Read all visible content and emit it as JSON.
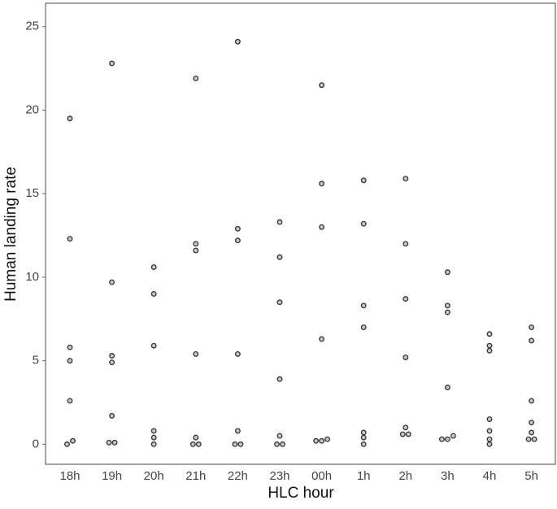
{
  "chart_data": {
    "type": "strip",
    "x_label": "HLC hour",
    "y_label": "Human landing rate",
    "categories": [
      "18h",
      "19h",
      "20h",
      "21h",
      "22h",
      "23h",
      "00h",
      "1h",
      "2h",
      "3h",
      "4h",
      "5h"
    ],
    "values": [
      [
        19.5,
        12.3,
        5.8,
        5.0,
        2.6,
        0.2,
        0
      ],
      [
        22.8,
        9.7,
        5.3,
        4.9,
        1.7,
        0.1,
        0.1
      ],
      [
        10.6,
        9.0,
        5.9,
        0.8,
        0.4,
        0
      ],
      [
        21.9,
        12.0,
        11.6,
        5.4,
        0.4,
        0,
        0
      ],
      [
        24.1,
        12.9,
        12.2,
        5.4,
        0.8,
        0,
        0
      ],
      [
        13.3,
        11.2,
        8.5,
        3.9,
        0.5,
        0,
        0
      ],
      [
        21.5,
        15.6,
        13.0,
        6.3,
        0.3,
        0.2,
        0.2
      ],
      [
        15.8,
        13.2,
        8.3,
        7.0,
        0.7,
        0.4,
        0
      ],
      [
        15.9,
        12.0,
        8.7,
        5.2,
        1.0,
        0.6,
        0.6
      ],
      [
        10.3,
        8.3,
        7.9,
        3.4,
        0.5,
        0.3,
        0.3
      ],
      [
        6.6,
        5.9,
        5.6,
        1.5,
        0.8,
        0.3,
        0
      ],
      [
        7.0,
        6.2,
        2.6,
        1.3,
        0.7,
        0.3,
        0.3
      ]
    ],
    "color": "#c8c8c8",
    "ylim": [
      -1.2,
      26.4
    ],
    "yticks": [
      0,
      5,
      10,
      15,
      20,
      25
    ],
    "grid": false
  }
}
